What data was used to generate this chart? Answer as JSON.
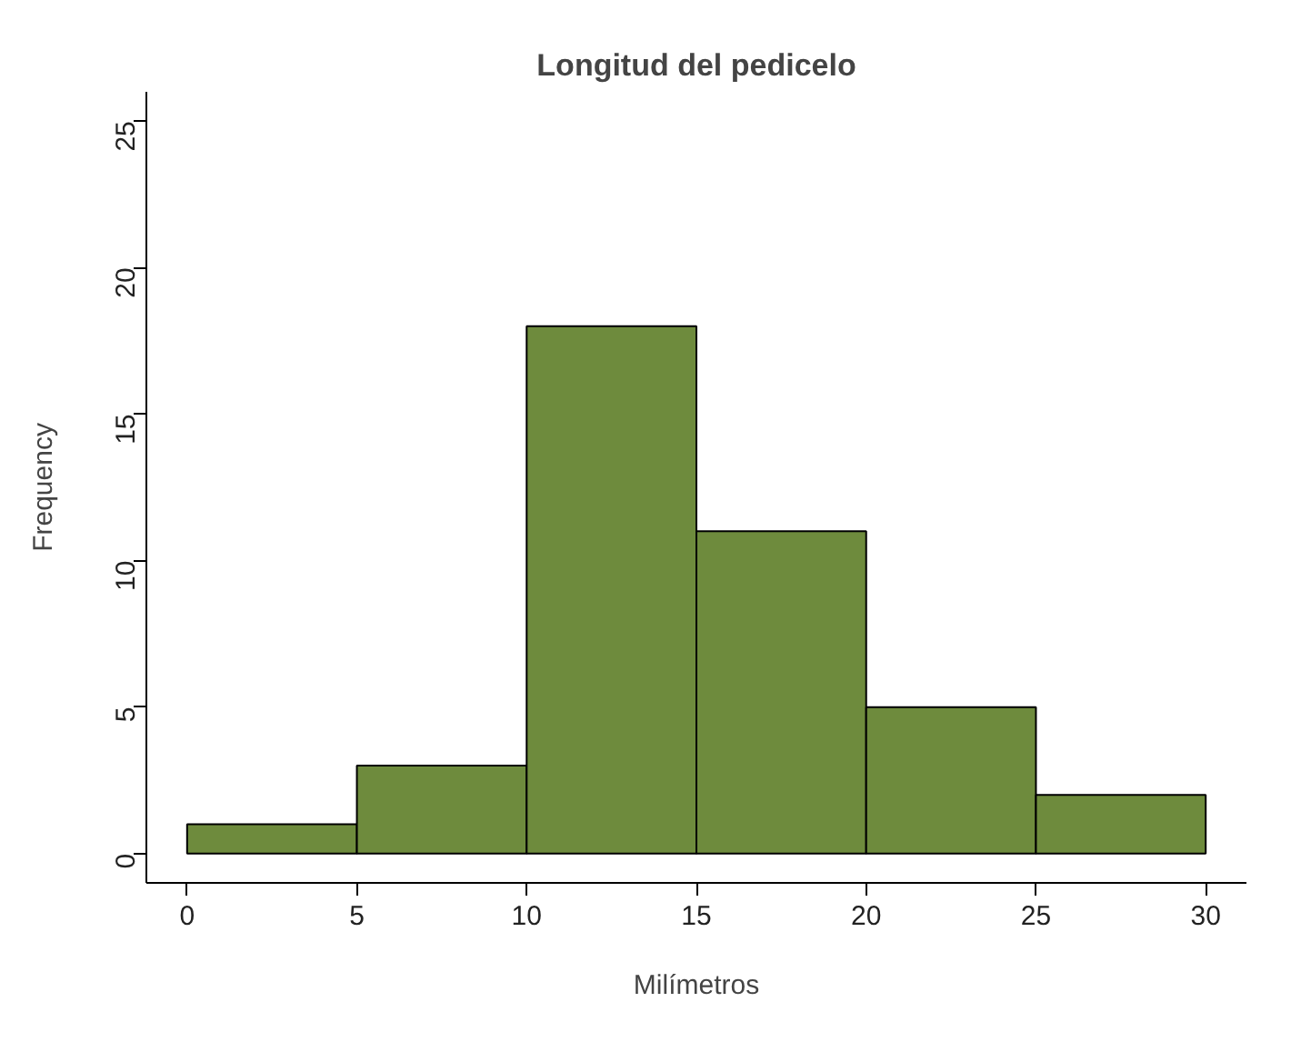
{
  "chart_data": {
    "type": "histogram",
    "title": "Longitud del pedicelo",
    "xlabel": "Milímetros",
    "ylabel": "Frequency",
    "bins": [
      0,
      5,
      10,
      15,
      20,
      25,
      30
    ],
    "values": [
      1,
      3,
      18,
      11,
      5,
      2
    ],
    "color": "#6e8b3d",
    "xlim": [
      -1.2,
      31.2
    ],
    "ylim": [
      -1,
      26
    ],
    "xticks": [
      0,
      5,
      10,
      15,
      20,
      25,
      30
    ],
    "yticks": [
      0,
      5,
      10,
      15,
      20,
      25
    ],
    "grid": false
  }
}
